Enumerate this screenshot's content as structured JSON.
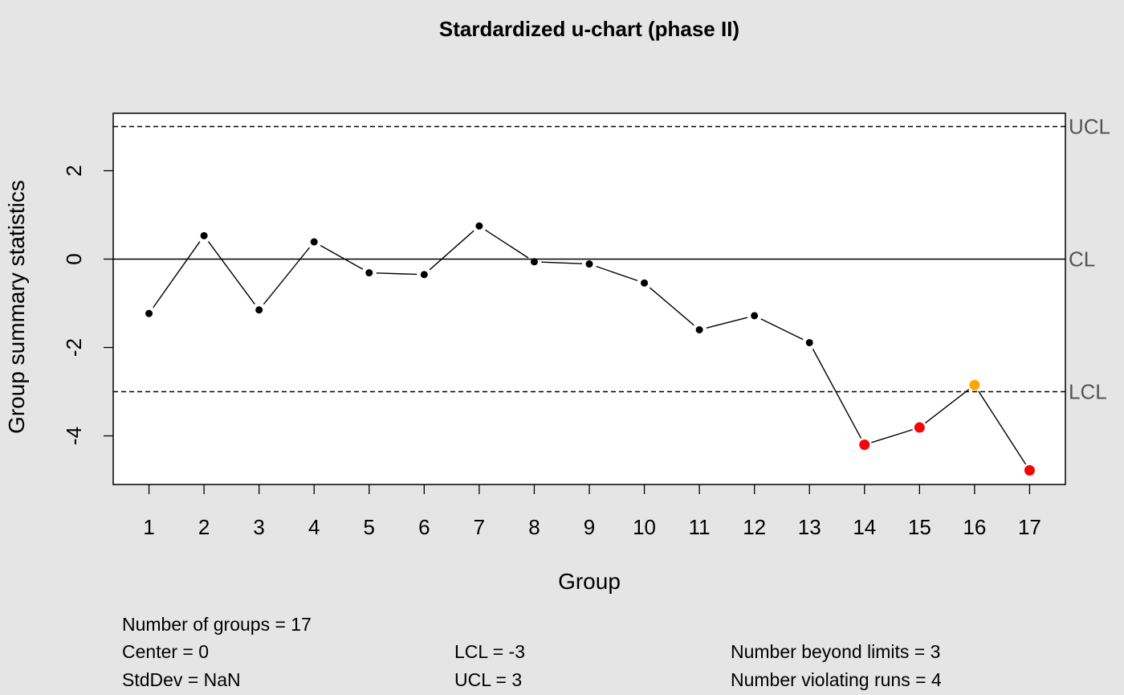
{
  "chart_data": {
    "type": "line",
    "title": "Stardardized u-chart (phase II)",
    "xlabel": "Group",
    "ylabel": "Group summary statistics",
    "x": [
      1,
      2,
      3,
      4,
      5,
      6,
      7,
      8,
      9,
      10,
      11,
      12,
      13,
      14,
      15,
      16,
      17
    ],
    "values": [
      -1.23,
      0.53,
      -1.15,
      0.39,
      -0.31,
      -0.35,
      0.75,
      -0.06,
      -0.11,
      -0.54,
      -1.6,
      -1.28,
      -1.89,
      -4.2,
      -3.81,
      -2.85,
      -4.78
    ],
    "point_status": [
      "normal",
      "normal",
      "normal",
      "normal",
      "normal",
      "normal",
      "normal",
      "normal",
      "normal",
      "normal",
      "normal",
      "normal",
      "normal",
      "beyond",
      "beyond",
      "violating",
      "beyond"
    ],
    "ylim": [
      -5.1,
      3.3
    ],
    "yticks": [
      "-4",
      "-2",
      "0",
      "2"
    ],
    "ytick_values": [
      -4,
      -2,
      0,
      2
    ],
    "xticks": [
      "1",
      "2",
      "3",
      "4",
      "5",
      "6",
      "7",
      "8",
      "9",
      "10",
      "11",
      "12",
      "13",
      "14",
      "15",
      "16",
      "17"
    ],
    "limits": [
      {
        "label": "UCL",
        "value": 3,
        "style": "dashed"
      },
      {
        "label": "CL",
        "value": 0,
        "style": "solid"
      },
      {
        "label": "LCL",
        "value": -3,
        "style": "dashed"
      }
    ],
    "colors": {
      "normal": "#000000",
      "beyond": "#ff0000",
      "violating": "#ffa500",
      "limit_label": "#555555",
      "background": "#e5e5e5",
      "plot_background": "#ffffff"
    },
    "grid": false
  },
  "stats": {
    "groups": "Number of groups = 17",
    "center": "Center = 0",
    "stddev": "StdDev = NaN",
    "lcl": "LCL = -3",
    "ucl": "UCL = 3",
    "beyond": "Number beyond limits = 3",
    "violating": "Number violating runs = 4"
  }
}
